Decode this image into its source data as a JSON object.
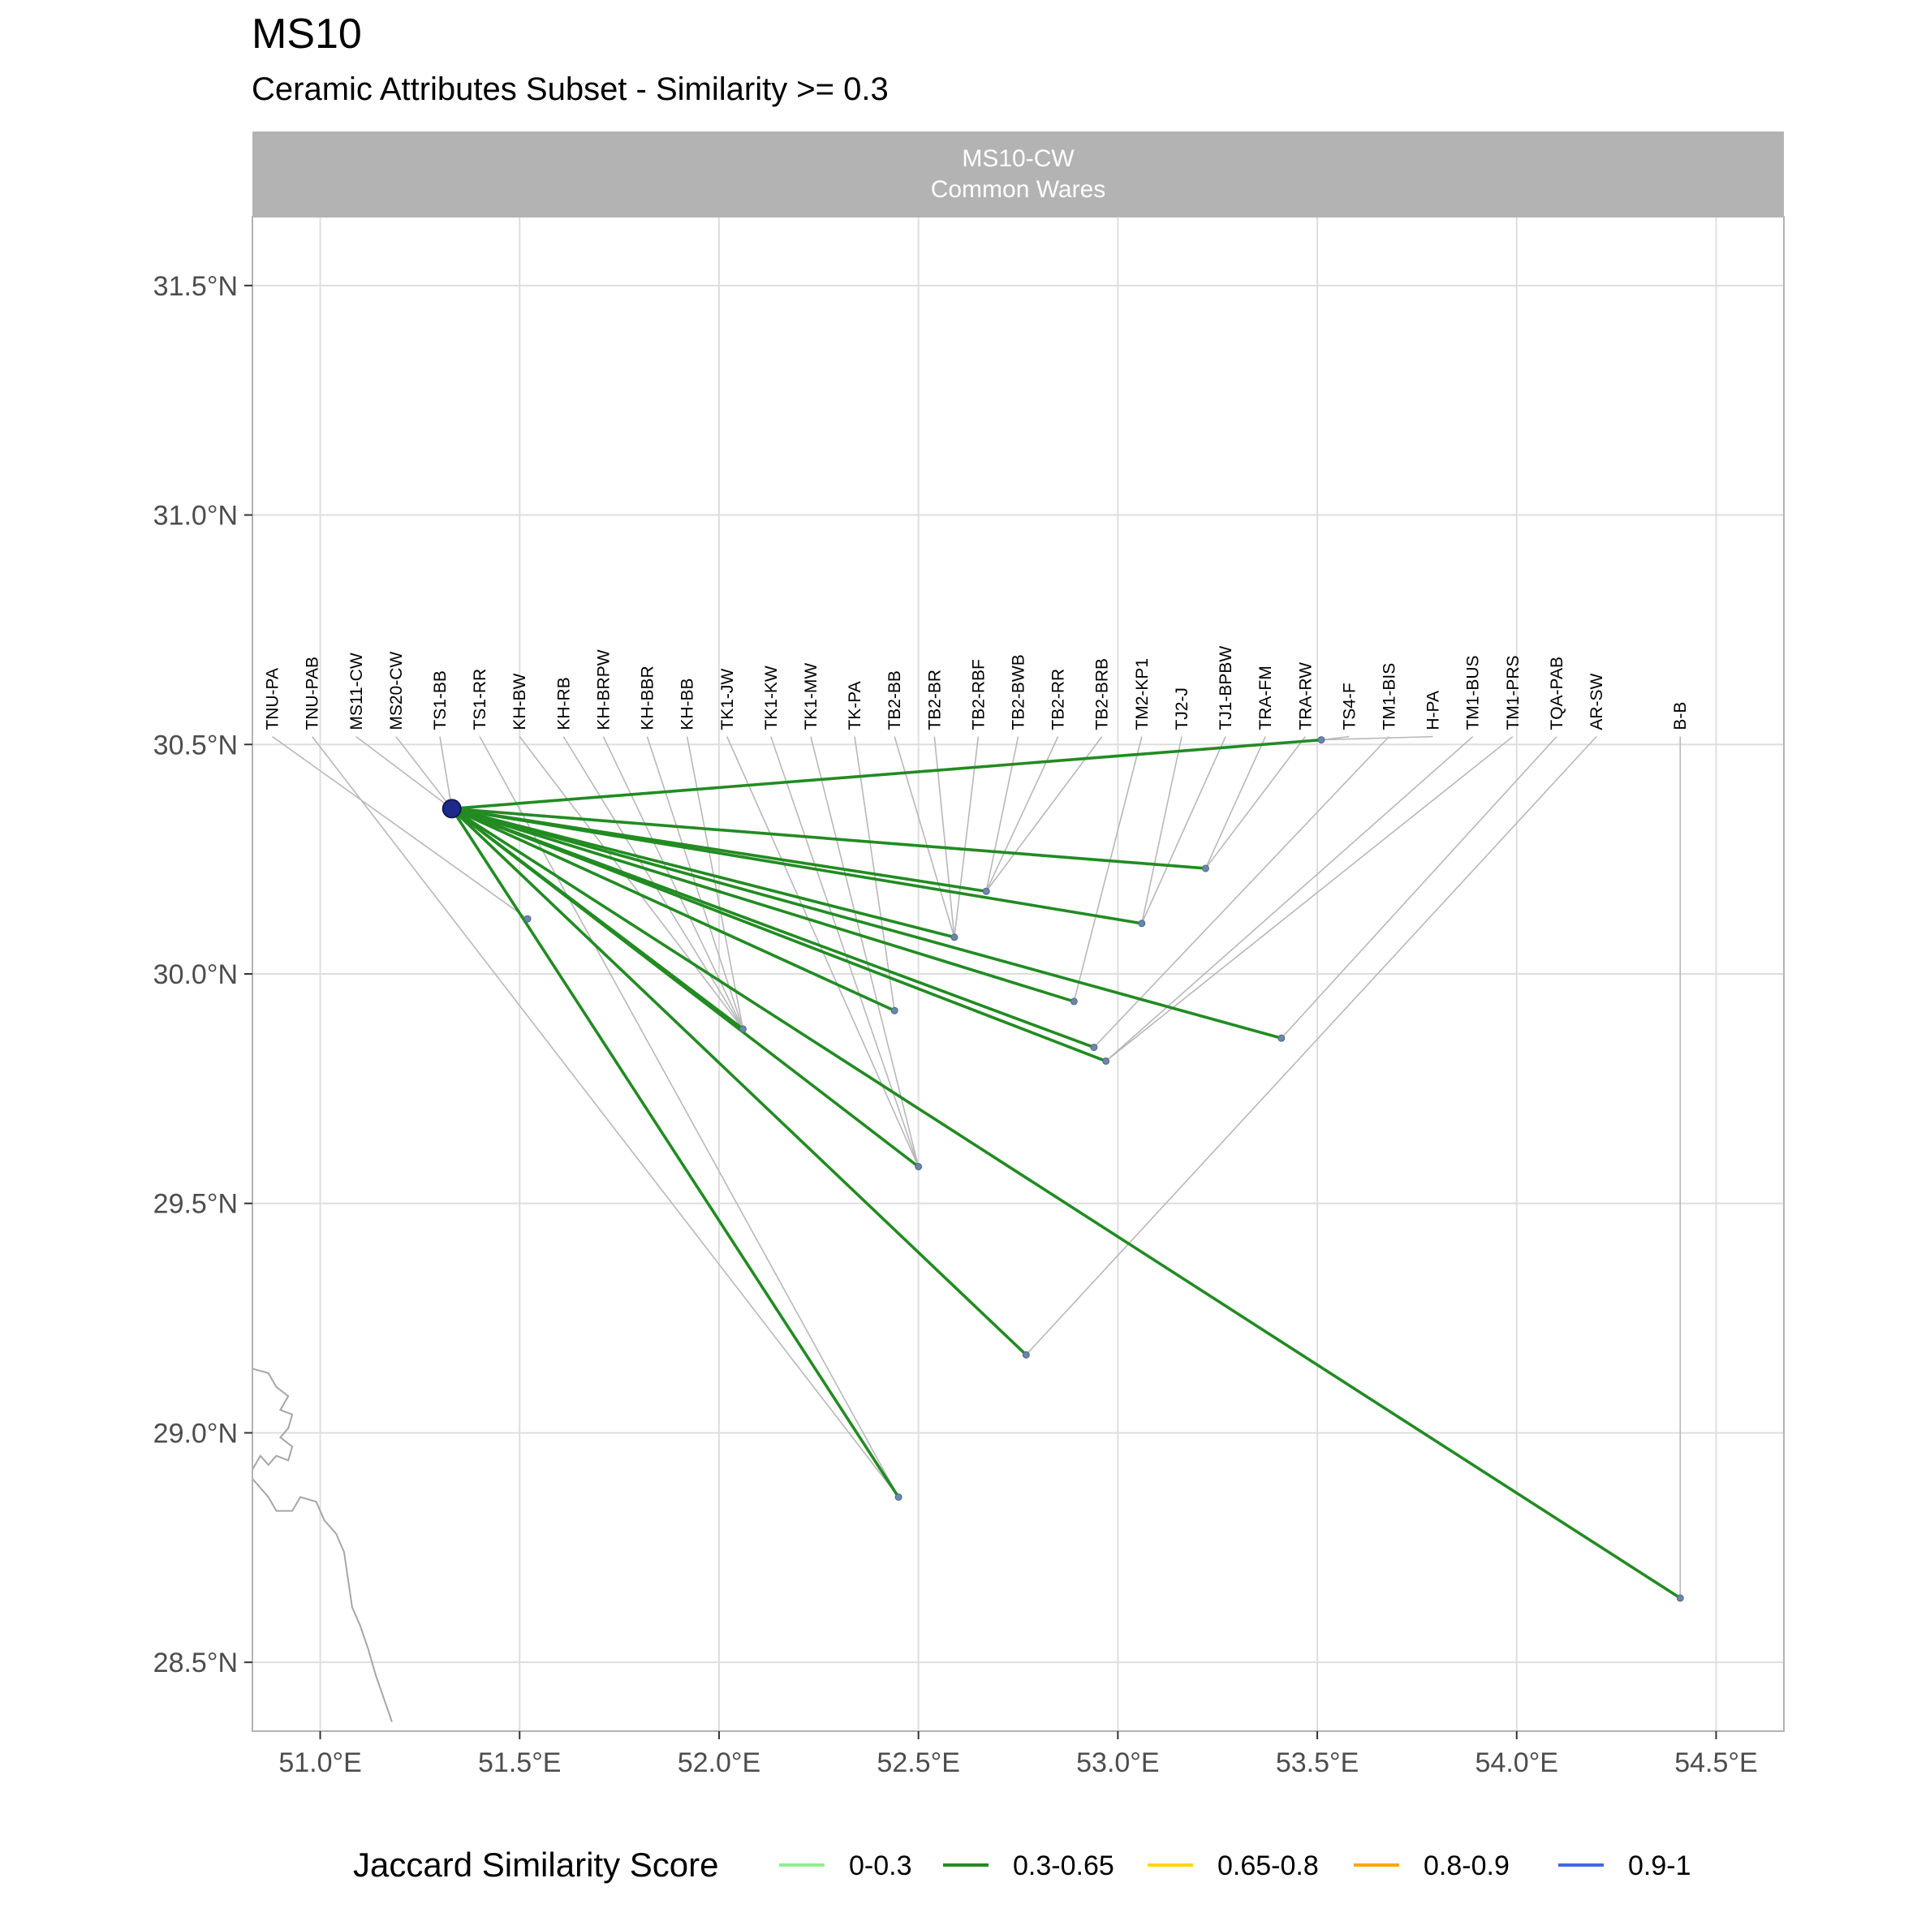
{
  "title": "MS10",
  "subtitle": "Ceramic Attributes Subset - Similarity >= 0.3",
  "colors": {
    "strip_bg": "#b3b3b3",
    "strip_text": "#ffffff",
    "grid": "#dedede",
    "panel_border": "#b3b3b3",
    "leader": "#b8b8b8",
    "coast": "#a6a6a6",
    "origin_point": "#1e2a8a",
    "target_point": "#6b86a6"
  },
  "chart_data": {
    "type": "map",
    "facet_title": [
      "MS10-CW",
      "Common Wares"
    ],
    "xlim": [
      50.83,
      54.67
    ],
    "ylim": [
      28.35,
      31.65
    ],
    "x_ticks": [
      51.0,
      51.5,
      52.0,
      52.5,
      53.0,
      53.5,
      54.0,
      54.5
    ],
    "x_tick_labels": [
      "51.0°E",
      "51.5°E",
      "52.0°E",
      "52.5°E",
      "53.0°E",
      "53.5°E",
      "54.0°E",
      "54.5°E"
    ],
    "y_ticks": [
      28.5,
      29.0,
      29.5,
      30.0,
      30.5,
      31.0,
      31.5
    ],
    "y_tick_labels": [
      "28.5°N",
      "29.0°N",
      "29.5°N",
      "30.0°N",
      "30.5°N",
      "31.0°N",
      "31.5°N"
    ],
    "grid": true,
    "origin": {
      "lon": 51.33,
      "lat": 30.36
    },
    "connections": [
      {
        "lon": 53.51,
        "lat": 30.51,
        "score_bin": "0.3-0.65"
      },
      {
        "lon": 53.22,
        "lat": 30.23,
        "score_bin": "0.3-0.65"
      },
      {
        "lon": 52.67,
        "lat": 30.18,
        "score_bin": "0.3-0.65"
      },
      {
        "lon": 52.59,
        "lat": 30.08,
        "score_bin": "0.3-0.65"
      },
      {
        "lon": 53.06,
        "lat": 30.11,
        "score_bin": "0.3-0.65"
      },
      {
        "lon": 52.89,
        "lat": 29.94,
        "score_bin": "0.3-0.65"
      },
      {
        "lon": 52.44,
        "lat": 29.92,
        "score_bin": "0.3-0.65"
      },
      {
        "lon": 53.41,
        "lat": 29.86,
        "score_bin": "0.3-0.65"
      },
      {
        "lon": 52.94,
        "lat": 29.84,
        "score_bin": "0.3-0.65"
      },
      {
        "lon": 52.97,
        "lat": 29.81,
        "score_bin": "0.3-0.65"
      },
      {
        "lon": 52.06,
        "lat": 29.88,
        "score_bin": "0.3-0.65"
      },
      {
        "lon": 52.5,
        "lat": 29.58,
        "score_bin": "0.3-0.65"
      },
      {
        "lon": 52.77,
        "lat": 29.17,
        "score_bin": "0.3-0.65"
      },
      {
        "lon": 52.45,
        "lat": 28.86,
        "score_bin": "0.3-0.65"
      },
      {
        "lon": 54.41,
        "lat": 28.64,
        "score_bin": "0.3-0.65"
      }
    ],
    "extra_points": [
      {
        "lon": 51.52,
        "lat": 30.12
      }
    ],
    "site_labels": [
      {
        "text": "TNU-PA",
        "label_lon": 50.88,
        "point_lon": 51.52,
        "point_lat": 30.12
      },
      {
        "text": "TNU-PAB",
        "label_lon": 50.98,
        "point_lon": 52.45,
        "point_lat": 28.86
      },
      {
        "text": "MS11-CW",
        "label_lon": 51.09,
        "point_lon": 51.33,
        "point_lat": 30.36
      },
      {
        "text": "MS20-CW",
        "label_lon": 51.19,
        "point_lon": 51.33,
        "point_lat": 30.36
      },
      {
        "text": "TS1-BB",
        "label_lon": 51.3,
        "point_lon": 51.33,
        "point_lat": 30.36
      },
      {
        "text": "TS1-RR",
        "label_lon": 51.4,
        "point_lon": 52.45,
        "point_lat": 28.86
      },
      {
        "text": "KH-BW",
        "label_lon": 51.5,
        "point_lon": 52.06,
        "point_lat": 29.88
      },
      {
        "text": "KH-RB",
        "label_lon": 51.61,
        "point_lon": 52.06,
        "point_lat": 29.88
      },
      {
        "text": "KH-BRPW",
        "label_lon": 51.71,
        "point_lon": 52.06,
        "point_lat": 29.88
      },
      {
        "text": "KH-BBR",
        "label_lon": 51.82,
        "point_lon": 52.06,
        "point_lat": 29.88
      },
      {
        "text": "KH-BB",
        "label_lon": 51.92,
        "point_lon": 52.06,
        "point_lat": 29.88
      },
      {
        "text": "TK1-JW",
        "label_lon": 52.02,
        "point_lon": 52.5,
        "point_lat": 29.58
      },
      {
        "text": "TK1-KW",
        "label_lon": 52.13,
        "point_lon": 52.5,
        "point_lat": 29.58
      },
      {
        "text": "TK1-MW",
        "label_lon": 52.23,
        "point_lon": 52.5,
        "point_lat": 29.58
      },
      {
        "text": "TK-PA",
        "label_lon": 52.34,
        "point_lon": 52.44,
        "point_lat": 29.92
      },
      {
        "text": "TB2-BB",
        "label_lon": 52.44,
        "point_lon": 52.59,
        "point_lat": 30.08
      },
      {
        "text": "TB2-BR",
        "label_lon": 52.54,
        "point_lon": 52.59,
        "point_lat": 30.08
      },
      {
        "text": "TB2-RBF",
        "label_lon": 52.65,
        "point_lon": 52.59,
        "point_lat": 30.08
      },
      {
        "text": "TB2-BWB",
        "label_lon": 52.75,
        "point_lon": 52.67,
        "point_lat": 30.18
      },
      {
        "text": "TB2-RR",
        "label_lon": 52.85,
        "point_lon": 52.67,
        "point_lat": 30.18
      },
      {
        "text": "TB2-BRB",
        "label_lon": 52.96,
        "point_lon": 52.67,
        "point_lat": 30.18
      },
      {
        "text": "TM2-KP1",
        "label_lon": 53.06,
        "point_lon": 52.89,
        "point_lat": 29.94
      },
      {
        "text": "TJ2-J",
        "label_lon": 53.16,
        "point_lon": 53.06,
        "point_lat": 30.11
      },
      {
        "text": "TJ1-BPBW",
        "label_lon": 53.27,
        "point_lon": 53.06,
        "point_lat": 30.11
      },
      {
        "text": "TRA-FM",
        "label_lon": 53.37,
        "point_lon": 53.22,
        "point_lat": 30.23
      },
      {
        "text": "TRA-RW",
        "label_lon": 53.47,
        "point_lon": 53.22,
        "point_lat": 30.23
      },
      {
        "text": "TS4-F",
        "label_lon": 53.58,
        "point_lon": 53.51,
        "point_lat": 30.51
      },
      {
        "text": "TM1-BIS",
        "label_lon": 53.68,
        "point_lon": 52.94,
        "point_lat": 29.84
      },
      {
        "text": "H-PA",
        "label_lon": 53.79,
        "point_lon": 53.51,
        "point_lat": 30.51
      },
      {
        "text": "TM1-BUS",
        "label_lon": 53.89,
        "point_lon": 52.97,
        "point_lat": 29.81
      },
      {
        "text": "TM1-PRS",
        "label_lon": 53.99,
        "point_lon": 52.97,
        "point_lat": 29.81
      },
      {
        "text": "TQA-PAB",
        "label_lon": 54.1,
        "point_lon": 53.41,
        "point_lat": 29.86
      },
      {
        "text": "AR-SW",
        "label_lon": 54.2,
        "point_lon": 52.77,
        "point_lat": 29.17
      },
      {
        "text": "B-B",
        "label_lon": 54.41,
        "point_lon": 54.41,
        "point_lat": 28.64
      }
    ],
    "coastline": [
      [
        50.83,
        29.14
      ],
      [
        50.87,
        29.13
      ],
      [
        50.89,
        29.1
      ],
      [
        50.92,
        29.08
      ],
      [
        50.9,
        29.05
      ],
      [
        50.93,
        29.04
      ],
      [
        50.92,
        29.01
      ],
      [
        50.9,
        28.99
      ],
      [
        50.93,
        28.97
      ],
      [
        50.92,
        28.94
      ],
      [
        50.89,
        28.95
      ],
      [
        50.87,
        28.93
      ],
      [
        50.85,
        28.95
      ],
      [
        50.83,
        28.92
      ]
    ],
    "coastline2": [
      [
        50.83,
        28.9
      ],
      [
        50.87,
        28.86
      ],
      [
        50.89,
        28.83
      ],
      [
        50.93,
        28.83
      ],
      [
        50.95,
        28.86
      ],
      [
        50.99,
        28.85
      ],
      [
        51.01,
        28.81
      ],
      [
        51.04,
        28.78
      ],
      [
        51.06,
        28.74
      ],
      [
        51.07,
        28.68
      ],
      [
        51.08,
        28.62
      ],
      [
        51.1,
        28.58
      ],
      [
        51.12,
        28.53
      ],
      [
        51.14,
        28.47
      ],
      [
        51.16,
        28.42
      ],
      [
        51.18,
        28.37
      ]
    ],
    "legend": {
      "title": "Jaccard Similarity Score",
      "placement": "bottom",
      "entries": [
        {
          "label": "0-0.3",
          "color": "#90ee90"
        },
        {
          "label": "0.3-0.65",
          "color": "#228b22"
        },
        {
          "label": "0.65-0.8",
          "color": "#ffd700"
        },
        {
          "label": "0.8-0.9",
          "color": "#ffa500"
        },
        {
          "label": "0.9-1",
          "color": "#4169e1"
        }
      ]
    }
  }
}
